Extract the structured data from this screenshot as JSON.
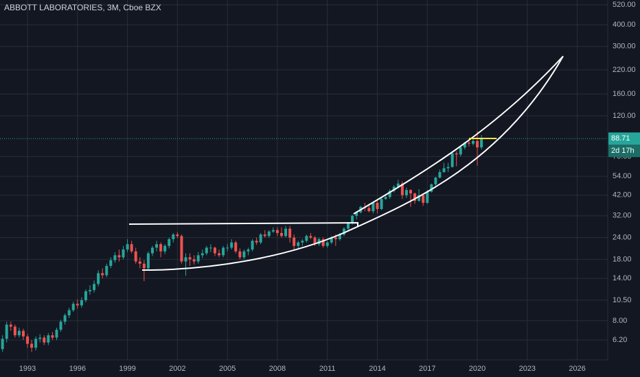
{
  "chart_data": {
    "type": "candlestick",
    "title": "ABBOTT LABORATORIES, 3M, Cboe BZX",
    "yscale": "log",
    "grid": true,
    "up_color": "#26a69a",
    "down_color": "#ef5350",
    "xlim": [
      1991.35,
      2027.83
    ],
    "xticks": [
      1993,
      1996,
      1999,
      2002,
      2005,
      2008,
      2011,
      2014,
      2017,
      2020,
      2023,
      2026
    ],
    "ylim": [
      4.77,
      554
    ],
    "yticks": [
      {
        "value": 520,
        "label": "520.00"
      },
      {
        "value": 400,
        "label": "400.00"
      },
      {
        "value": 300,
        "label": "300.00"
      },
      {
        "value": 220,
        "label": "220.00"
      },
      {
        "value": 160,
        "label": "160.00"
      },
      {
        "value": 120,
        "label": "120.00"
      },
      {
        "value": 70,
        "label": "70.00"
      },
      {
        "value": 54,
        "label": "54.00"
      },
      {
        "value": 42,
        "label": "42.00"
      },
      {
        "value": 32,
        "label": "32.00"
      },
      {
        "value": 24,
        "label": "24.00"
      },
      {
        "value": 18,
        "label": "18.00"
      },
      {
        "value": 14,
        "label": "14.00"
      },
      {
        "value": 10.5,
        "label": "10.50"
      },
      {
        "value": 8,
        "label": "8.00"
      },
      {
        "value": 6.2,
        "label": "6.20"
      }
    ],
    "last_price": 88.71,
    "countdown": "2d 17h",
    "ohlc": [
      [
        1991.5,
        5.5,
        6.6,
        5.3,
        6.3
      ],
      [
        1991.75,
        6.3,
        7.9,
        6.0,
        7.6
      ],
      [
        1992,
        7.6,
        7.9,
        7.0,
        7.4
      ],
      [
        1992.25,
        7.4,
        7.6,
        6.4,
        6.6
      ],
      [
        1992.5,
        6.6,
        7.3,
        6.4,
        7.0
      ],
      [
        1992.75,
        7.0,
        7.2,
        6.2,
        6.5
      ],
      [
        1993,
        6.5,
        6.7,
        5.6,
        5.9
      ],
      [
        1993.25,
        5.9,
        6.2,
        5.3,
        5.6
      ],
      [
        1993.5,
        5.6,
        6.5,
        5.4,
        6.3
      ],
      [
        1993.75,
        6.3,
        6.7,
        6.0,
        6.4
      ],
      [
        1994,
        6.4,
        6.6,
        5.8,
        6.0
      ],
      [
        1994.25,
        6.0,
        6.8,
        5.8,
        6.6
      ],
      [
        1994.5,
        6.6,
        6.9,
        6.2,
        6.4
      ],
      [
        1994.75,
        6.4,
        7.3,
        6.2,
        7.1
      ],
      [
        1995,
        7.1,
        8.1,
        6.9,
        7.9
      ],
      [
        1995.25,
        7.9,
        8.8,
        7.6,
        8.6
      ],
      [
        1995.5,
        8.6,
        9.5,
        8.3,
        9.2
      ],
      [
        1995.75,
        9.2,
        10.3,
        9.0,
        10.0
      ],
      [
        1996,
        10.0,
        10.6,
        9.4,
        9.8
      ],
      [
        1996.25,
        9.8,
        10.9,
        9.5,
        10.5
      ],
      [
        1996.5,
        10.5,
        12.1,
        10.2,
        11.8
      ],
      [
        1996.75,
        11.8,
        12.8,
        11.3,
        12.0
      ],
      [
        1997,
        12.0,
        13.6,
        11.6,
        13.0
      ],
      [
        1997.25,
        13.0,
        15.6,
        12.6,
        15.0
      ],
      [
        1997.5,
        15.0,
        16.0,
        14.0,
        14.6
      ],
      [
        1997.75,
        14.6,
        17.0,
        14.2,
        16.5
      ],
      [
        1998,
        16.5,
        18.5,
        16.0,
        17.8
      ],
      [
        1998.25,
        17.8,
        19.8,
        17.2,
        19.0
      ],
      [
        1998.5,
        19.0,
        20.5,
        17.5,
        18.5
      ],
      [
        1998.75,
        18.5,
        21.5,
        18.0,
        20.5
      ],
      [
        1999,
        20.5,
        23.5,
        19.8,
        22.0
      ],
      [
        1999.25,
        22.0,
        23.0,
        19.5,
        20.0
      ],
      [
        1999.5,
        20.0,
        21.0,
        17.0,
        17.5
      ],
      [
        1999.75,
        17.5,
        18.5,
        16.0,
        17.0
      ],
      [
        2000,
        17.0,
        17.8,
        13.5,
        16.0
      ],
      [
        2000.25,
        16.0,
        20.0,
        15.5,
        19.5
      ],
      [
        2000.5,
        19.5,
        21.5,
        18.8,
        21.0
      ],
      [
        2000.75,
        21.0,
        23.0,
        20.0,
        22.0
      ],
      [
        2001,
        22.0,
        22.5,
        18.5,
        20.0
      ],
      [
        2001.25,
        20.0,
        22.0,
        19.3,
        21.5
      ],
      [
        2001.5,
        21.5,
        24.0,
        20.8,
        23.5
      ],
      [
        2001.75,
        23.5,
        25.5,
        22.5,
        25.0
      ],
      [
        2002,
        25.0,
        25.8,
        23.8,
        24.5
      ],
      [
        2002.25,
        24.5,
        25.0,
        17.0,
        17.5
      ],
      [
        2002.5,
        17.5,
        19.5,
        14.5,
        18.5
      ],
      [
        2002.75,
        18.5,
        19.5,
        16.5,
        18.0
      ],
      [
        2003,
        18.0,
        19.0,
        16.8,
        17.5
      ],
      [
        2003.25,
        17.5,
        19.8,
        17.0,
        19.0
      ],
      [
        2003.5,
        19.0,
        20.5,
        18.3,
        19.5
      ],
      [
        2003.75,
        19.5,
        21.5,
        19.0,
        21.0
      ],
      [
        2004,
        21.0,
        22.0,
        19.8,
        21.0
      ],
      [
        2004.25,
        21.0,
        21.3,
        18.8,
        19.5
      ],
      [
        2004.5,
        19.5,
        20.5,
        18.5,
        19.0
      ],
      [
        2004.75,
        19.0,
        21.5,
        18.5,
        21.0
      ],
      [
        2005,
        21.0,
        22.0,
        20.0,
        21.0
      ],
      [
        2005.25,
        21.0,
        23.5,
        20.5,
        22.5
      ],
      [
        2005.5,
        22.5,
        23.0,
        19.5,
        20.0
      ],
      [
        2005.75,
        20.0,
        20.8,
        18.0,
        18.5
      ],
      [
        2006,
        18.5,
        20.5,
        18.0,
        20.0
      ],
      [
        2006.25,
        20.0,
        21.0,
        19.0,
        20.5
      ],
      [
        2006.5,
        20.5,
        23.5,
        20.0,
        23.0
      ],
      [
        2006.75,
        23.0,
        24.0,
        21.8,
        22.5
      ],
      [
        2007,
        22.5,
        25.5,
        22.0,
        25.0
      ],
      [
        2007.25,
        25.0,
        26.5,
        24.0,
        24.5
      ],
      [
        2007.5,
        24.5,
        26.5,
        24.0,
        26.0
      ],
      [
        2007.75,
        26.0,
        27.5,
        25.5,
        26.5
      ],
      [
        2008,
        26.5,
        27.5,
        24.5,
        25.5
      ],
      [
        2008.25,
        25.5,
        27.5,
        24.0,
        24.5
      ],
      [
        2008.5,
        24.5,
        28.0,
        24.0,
        27.0
      ],
      [
        2008.75,
        27.0,
        28.0,
        22.5,
        24.0
      ],
      [
        2009,
        24.0,
        25.0,
        20.5,
        21.5
      ],
      [
        2009.25,
        21.5,
        23.0,
        20.8,
        22.5
      ],
      [
        2009.5,
        22.5,
        23.5,
        21.5,
        23.0
      ],
      [
        2009.75,
        23.0,
        25.0,
        22.5,
        24.5
      ],
      [
        2010,
        24.5,
        25.5,
        23.5,
        24.0
      ],
      [
        2010.25,
        24.0,
        24.5,
        21.5,
        22.0
      ],
      [
        2010.5,
        22.0,
        24.0,
        21.5,
        23.5
      ],
      [
        2010.75,
        23.5,
        24.0,
        21.0,
        21.5
      ],
      [
        2011,
        21.5,
        23.0,
        21.0,
        22.5
      ],
      [
        2011.25,
        22.5,
        24.5,
        22.0,
        24.0
      ],
      [
        2011.5,
        24.0,
        25.0,
        21.5,
        23.5
      ],
      [
        2011.75,
        23.5,
        25.5,
        23.0,
        25.0
      ],
      [
        2012,
        25.0,
        27.5,
        24.5,
        27.0
      ],
      [
        2012.25,
        27.0,
        29.5,
        26.0,
        29.0
      ],
      [
        2012.5,
        29.0,
        32.5,
        28.5,
        32.0
      ],
      [
        2012.75,
        32.0,
        34.0,
        30.5,
        33.5
      ],
      [
        2013,
        33.5,
        36.5,
        33.0,
        36.0
      ],
      [
        2013.25,
        36.0,
        38.0,
        34.0,
        35.5
      ],
      [
        2013.5,
        35.5,
        37.5,
        33.5,
        34.0
      ],
      [
        2013.75,
        34.0,
        38.5,
        33.0,
        38.0
      ],
      [
        2014,
        38.0,
        39.0,
        33.0,
        35.0
      ],
      [
        2014.25,
        35.0,
        41.0,
        34.5,
        40.0
      ],
      [
        2014.5,
        40.0,
        42.5,
        39.5,
        41.0
      ],
      [
        2014.75,
        41.0,
        45.5,
        40.0,
        44.5
      ],
      [
        2015,
        44.5,
        48.0,
        43.5,
        47.0
      ],
      [
        2015.25,
        47.0,
        51.5,
        46.0,
        49.0
      ],
      [
        2015.5,
        49.0,
        50.5,
        40.0,
        42.0
      ],
      [
        2015.75,
        42.0,
        46.5,
        40.5,
        45.0
      ],
      [
        2016,
        45.0,
        45.5,
        36.0,
        43.0
      ],
      [
        2016.25,
        43.0,
        43.5,
        37.5,
        39.0
      ],
      [
        2016.5,
        39.0,
        45.5,
        38.5,
        42.0
      ],
      [
        2016.75,
        42.0,
        43.0,
        36.5,
        38.0
      ],
      [
        2017,
        38.0,
        45.0,
        37.5,
        44.0
      ],
      [
        2017.25,
        44.0,
        49.0,
        43.5,
        48.5
      ],
      [
        2017.5,
        48.5,
        53.5,
        47.5,
        53.0
      ],
      [
        2017.75,
        53.0,
        59.0,
        52.5,
        57.0
      ],
      [
        2018,
        57.0,
        64.5,
        56.5,
        60.0
      ],
      [
        2018.25,
        60.0,
        64.5,
        57.0,
        61.0
      ],
      [
        2018.5,
        61.0,
        74.0,
        60.5,
        73.0
      ],
      [
        2018.75,
        73.0,
        75.0,
        61.5,
        72.0
      ],
      [
        2019,
        72.0,
        80.0,
        70.0,
        79.0
      ],
      [
        2019.25,
        79.0,
        85.0,
        77.0,
        84.0
      ],
      [
        2019.5,
        84.0,
        88.0,
        80.0,
        83.0
      ],
      [
        2019.75,
        83.0,
        88.5,
        81.0,
        86.0
      ],
      [
        2020,
        86.0,
        98.0,
        62.0,
        79.0
      ],
      [
        2020.25,
        79.0,
        93.0,
        77.0,
        88.71
      ]
    ]
  }
}
